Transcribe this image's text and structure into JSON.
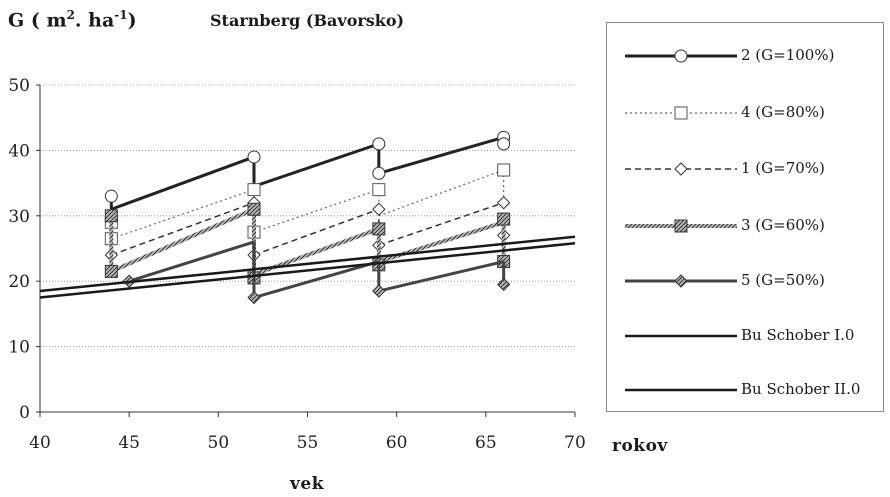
{
  "title": "Starnberg (Bavorsko)",
  "ylabel": {
    "main": "G ( m",
    "sup1": "2",
    "mid": ". ha",
    "sup2": "-1",
    "close": ")"
  },
  "xlabel": "vek",
  "xunit": "rokov",
  "chart_data": {
    "type": "line",
    "title": "Starnberg (Bavorsko)",
    "xlabel": "vek",
    "ylabel": "G ( m2. ha-1)",
    "xlim": [
      40,
      70
    ],
    "ylim": [
      0,
      50
    ],
    "x_ticks": [
      40,
      45,
      50,
      55,
      60,
      65,
      70
    ],
    "y_ticks": [
      0,
      10,
      20,
      30,
      40,
      50
    ],
    "grid": "horizontal dotted",
    "legend_position": "right",
    "series": [
      {
        "name": "2 (G=100%)",
        "color": "#222222",
        "marker": "circle",
        "style": "solid",
        "width": 3,
        "segments": [
          [
            [
              44,
              31
            ],
            [
              52,
              39
            ]
          ],
          [
            [
              52,
              34.5
            ],
            [
              59,
              41
            ]
          ],
          [
            [
              59,
              36.5
            ],
            [
              66,
              42
            ]
          ]
        ],
        "drops": [
          [
            [
              44,
              33
            ],
            [
              44,
              31
            ]
          ],
          [
            [
              52,
              39
            ],
            [
              52,
              34.5
            ]
          ],
          [
            [
              59,
              41
            ],
            [
              59,
              36.5
            ]
          ],
          [
            [
              66,
              42
            ],
            [
              66,
              41
            ]
          ]
        ],
        "markers": [
          [
            44,
            33
          ],
          [
            52,
            39
          ],
          [
            59,
            41
          ],
          [
            59,
            36.5
          ],
          [
            66,
            42
          ],
          [
            66,
            41
          ]
        ]
      },
      {
        "name": "4 (G=80%)",
        "color": "#666666",
        "marker": "square",
        "style": "dotted",
        "width": 1.2,
        "segments": [
          [
            [
              44,
              26.5
            ],
            [
              52,
              34
            ]
          ],
          [
            [
              52,
              27.5
            ],
            [
              59,
              34
            ]
          ],
          [
            [
              59,
              30
            ],
            [
              66,
              37
            ]
          ]
        ],
        "drops": [
          [
            [
              44,
              29
            ],
            [
              44,
              26.5
            ]
          ],
          [
            [
              52,
              34
            ],
            [
              52,
              27.5
            ]
          ],
          [
            [
              59,
              34
            ],
            [
              59,
              30
            ]
          ],
          [
            [
              66,
              37
            ],
            [
              66,
              33
            ]
          ]
        ],
        "markers": [
          [
            44,
            29
          ],
          [
            44,
            26.5
          ],
          [
            52,
            34
          ],
          [
            52,
            27.5
          ],
          [
            59,
            34
          ],
          [
            66,
            37
          ]
        ]
      },
      {
        "name": "1 (G=70%)",
        "color": "#333333",
        "marker": "diamond",
        "style": "dashed",
        "width": 1.5,
        "segments": [
          [
            [
              44,
              24
            ],
            [
              52,
              32
            ]
          ],
          [
            [
              52,
              24
            ],
            [
              59,
              31
            ]
          ],
          [
            [
              59,
              25.5
            ],
            [
              66,
              32
            ]
          ]
        ],
        "drops": [
          [
            [
              44,
              24
            ],
            [
              44,
              22
            ]
          ],
          [
            [
              52,
              32
            ],
            [
              52,
              24
            ]
          ],
          [
            [
              59,
              31
            ],
            [
              59,
              25.5
            ]
          ],
          [
            [
              66,
              32
            ],
            [
              66,
              27
            ]
          ]
        ],
        "markers": [
          [
            44,
            24
          ],
          [
            52,
            32
          ],
          [
            52,
            24
          ],
          [
            59,
            31
          ],
          [
            59,
            25.5
          ],
          [
            66,
            32
          ],
          [
            66,
            27
          ]
        ]
      },
      {
        "name": "3 (G=60%)",
        "color": "#777777",
        "marker": "square-filled",
        "style": "hatched",
        "width": 4,
        "segments": [
          [
            [
              44,
              21.5
            ],
            [
              52,
              31
            ]
          ],
          [
            [
              52,
              21
            ],
            [
              59,
              28
            ]
          ],
          [
            [
              59,
              23
            ],
            [
              66,
              29
            ]
          ]
        ],
        "drops": [
          [
            [
              44,
              30
            ],
            [
              44,
              21.5
            ]
          ],
          [
            [
              52,
              31
            ],
            [
              52,
              21
            ]
          ],
          [
            [
              59,
              28
            ],
            [
              59,
              23
            ]
          ],
          [
            [
              66,
              29
            ],
            [
              66,
              23
            ]
          ]
        ],
        "markers": [
          [
            44,
            30
          ],
          [
            44,
            21.5
          ],
          [
            52,
            31
          ],
          [
            52,
            20.5
          ],
          [
            59,
            28
          ],
          [
            59,
            22.5
          ],
          [
            66,
            29.5
          ],
          [
            66,
            23
          ]
        ]
      },
      {
        "name": "5 (G=50%)",
        "color": "#444444",
        "marker": "diamond-filled",
        "style": "solid",
        "width": 3,
        "segments": [
          [
            [
              45,
              20
            ],
            [
              52,
              26
            ]
          ],
          [
            [
              52,
              17.5
            ],
            [
              59,
              23
            ]
          ],
          [
            [
              59,
              18.5
            ],
            [
              66,
              23
            ]
          ]
        ],
        "drops": [
          [
            [
              52,
              26
            ],
            [
              52,
              17.5
            ]
          ],
          [
            [
              59,
              23
            ],
            [
              59,
              18.5
            ]
          ],
          [
            [
              66,
              23
            ],
            [
              66,
              19.5
            ]
          ]
        ],
        "markers": [
          [
            45,
            20
          ],
          [
            52,
            17.5
          ],
          [
            59,
            18.5
          ],
          [
            66,
            19.5
          ]
        ]
      },
      {
        "name": "Bu Schober I.0",
        "color": "#1a1a1a",
        "marker": "none",
        "style": "solid",
        "width": 2.5,
        "segments": [
          [
            [
              40,
              18.5
            ],
            [
              70,
              26.8
            ]
          ]
        ]
      },
      {
        "name": "Bu Schober II.0",
        "color": "#1a1a1a",
        "marker": "none",
        "style": "solid",
        "width": 2.5,
        "segments": [
          [
            [
              40,
              17.5
            ],
            [
              70,
              25.8
            ]
          ]
        ]
      }
    ]
  }
}
